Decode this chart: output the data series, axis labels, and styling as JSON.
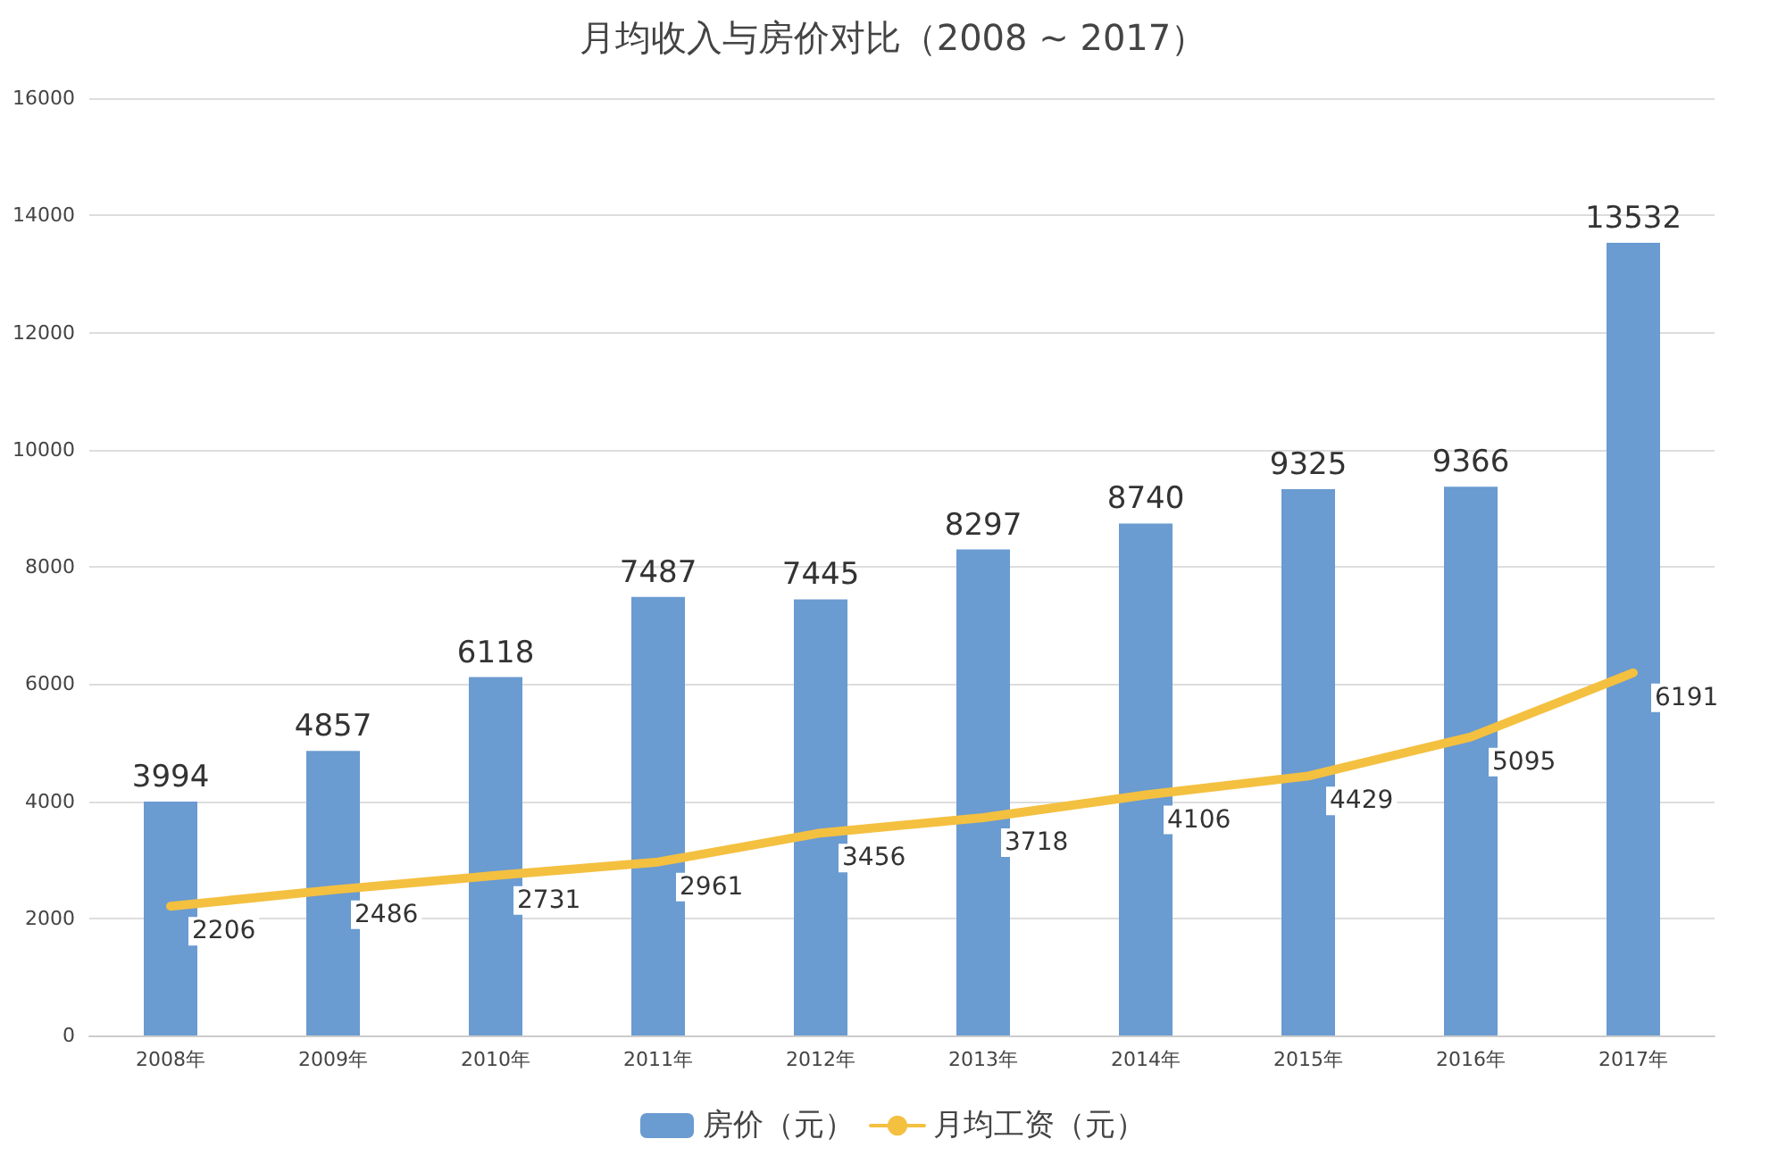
{
  "chart_data": {
    "type": "bar",
    "title": "月均收入与房价对比（2008 ~ 2017）",
    "categories": [
      "2008年",
      "2009年",
      "2010年",
      "2011年",
      "2012年",
      "2013年",
      "2014年",
      "2015年",
      "2016年",
      "2017年"
    ],
    "series": [
      {
        "name": "房价（元）",
        "color": "#6a9bd1",
        "values": [
          3994,
          4857,
          6118,
          7487,
          7445,
          8297,
          8740,
          9325,
          9366,
          13532
        ]
      },
      {
        "name": "月均工资（元）",
        "type": "line",
        "color": "#f4c040",
        "marker": "none",
        "values": [
          2206,
          2486,
          2731,
          2961,
          3456,
          3718,
          4106,
          4429,
          5095,
          6191
        ]
      }
    ],
    "ylim": [
      0,
      16000
    ],
    "yticks": [
      0,
      2000,
      4000,
      6000,
      8000,
      10000,
      12000,
      14000,
      16000
    ],
    "grid": "y",
    "legend": "bottom",
    "data_labels": true
  }
}
